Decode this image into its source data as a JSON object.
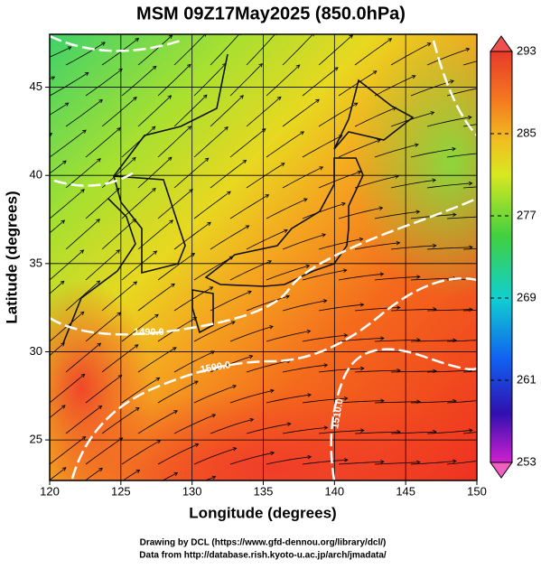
{
  "title": "MSM 09Z17May2025 (850.0hPa)",
  "x_axis": {
    "label": "Longitude (degrees)",
    "lim": [
      120,
      150
    ],
    "ticks": [
      120,
      125,
      130,
      135,
      140,
      145,
      150
    ]
  },
  "y_axis": {
    "label": "Latitude  (degrees)",
    "lim": [
      22.7,
      48
    ],
    "ticks": [
      25,
      30,
      35,
      40,
      45
    ]
  },
  "colorbar": {
    "lim": [
      253,
      293
    ],
    "ticks": [
      253,
      261,
      269,
      277,
      285,
      293
    ]
  },
  "contour_labels": [
    "1490.0",
    "1500.0",
    "1510.0"
  ],
  "credits": [
    "Drawing by DCL (https://www.gfd-dennou.org/library/dcl/)",
    "Data from http://database.rish.kyoto-u.ac.jp/arch/jmadata/"
  ]
}
